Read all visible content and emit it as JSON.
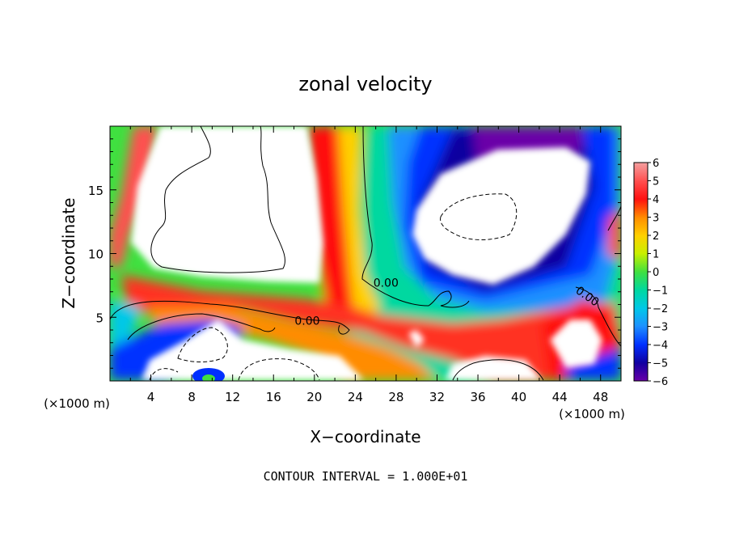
{
  "chart_data": {
    "type": "heatmap",
    "title": "zonal velocity",
    "xlabel": "X−coordinate",
    "ylabel": "Z−coordinate",
    "x_unit": "(×1000 m)",
    "z_unit": "(×1000 m)",
    "footer": "CONTOUR INTERVAL = 1.000E+01",
    "xlim": [
      0,
      50
    ],
    "ylim": [
      0,
      20
    ],
    "x_ticks": [
      4,
      8,
      12,
      16,
      20,
      24,
      28,
      32,
      36,
      40,
      44,
      48
    ],
    "y_ticks": [
      5,
      10,
      15
    ],
    "colorbar": {
      "levels": [
        6,
        5,
        4,
        3,
        2,
        1,
        0,
        -1,
        -2,
        -3,
        -4,
        -5,
        -6
      ],
      "labels": [
        "6",
        "5",
        "4",
        "3",
        "2",
        "1",
        "0",
        "−1",
        "−2",
        "−3",
        "−4",
        "−5",
        "−6"
      ],
      "colors": [
        "#f4a0a0",
        "#ff5050",
        "#ff1010",
        "#ff8c00",
        "#ffd000",
        "#c8f000",
        "#40e040",
        "#00d8a0",
        "#00c8e8",
        "#1e90ff",
        "#0030ff",
        "#1000a0",
        "#6a00a8"
      ]
    },
    "contour_labels": [
      {
        "text": "0.00",
        "x": 27,
        "z": 7.4
      },
      {
        "text": "0.00",
        "x": 19.3,
        "z": 4.4
      },
      {
        "text": "0.00",
        "x": 46.5,
        "z": 6.4
      }
    ]
  }
}
